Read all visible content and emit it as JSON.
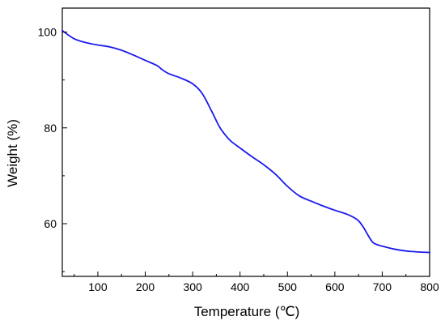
{
  "chart_data": {
    "type": "line",
    "xlabel": "Temperature (℃)",
    "ylabel": "Weight (%)",
    "xlim": [
      25,
      800
    ],
    "ylim": [
      49,
      105
    ],
    "x_ticks": [
      100,
      200,
      300,
      400,
      500,
      600,
      700,
      800
    ],
    "y_ticks": [
      60,
      80,
      100
    ],
    "grid": false,
    "line_color": "#1a1aee",
    "series": [
      {
        "x": [
          25,
          50,
          75,
          100,
          125,
          150,
          175,
          200,
          225,
          235,
          250,
          275,
          300,
          320,
          340,
          355,
          365,
          380,
          400,
          425,
          450,
          475,
          500,
          525,
          550,
          575,
          600,
          625,
          640,
          650,
          660,
          670,
          680,
          690,
          700,
          725,
          750,
          775,
          800
        ],
        "y": [
          100.3,
          98.6,
          97.8,
          97.3,
          96.9,
          96.2,
          95.2,
          94.1,
          93.0,
          92.2,
          91.3,
          90.4,
          89.2,
          87.2,
          83.5,
          80.5,
          79.0,
          77.3,
          75.8,
          74.0,
          72.3,
          70.3,
          67.8,
          65.8,
          64.7,
          63.7,
          62.8,
          62.0,
          61.3,
          60.6,
          59.3,
          57.6,
          56.1,
          55.6,
          55.3,
          54.7,
          54.3,
          54.1,
          54.0
        ]
      }
    ]
  }
}
